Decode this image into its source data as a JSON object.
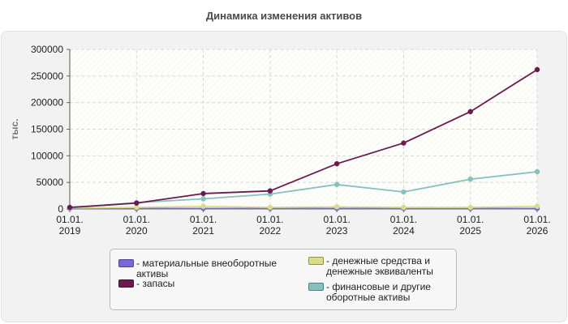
{
  "chart_data": {
    "type": "line",
    "title": "Динамика изменения активов",
    "ylabel": "тыс.",
    "xlabel": "",
    "x": [
      "01.01.\n2019",
      "01.01.\n2020",
      "01.01.\n2021",
      "01.01.\n2022",
      "01.01.\n2023",
      "01.01.\n2024",
      "01.01.\n2025",
      "01.01.\n2026"
    ],
    "ylim": [
      0,
      300000
    ],
    "yticks": [
      0,
      50000,
      100000,
      150000,
      200000,
      250000,
      300000
    ],
    "grid": true,
    "legend_position": "bottom",
    "series": [
      {
        "name": "- материальные внеоборотные активы",
        "color": "#7b68d8",
        "values": [
          1000,
          1000,
          1000,
          1000,
          1000,
          1000,
          1000,
          1000
        ]
      },
      {
        "name": "- запасы",
        "color": "#6b1a4e",
        "values": [
          3000,
          11000,
          29000,
          34000,
          85000,
          124000,
          183000,
          262000
        ]
      },
      {
        "name": "- денежные средства и денежные эквиваленты",
        "color": "#dcdc88",
        "values": [
          2000,
          3000,
          5000,
          3000,
          4000,
          3000,
          3000,
          5000
        ]
      },
      {
        "name": "- финансовые и другие оборотные активы",
        "color": "#86c0c0",
        "values": [
          2000,
          12000,
          19000,
          28000,
          46000,
          32000,
          56000,
          70000
        ]
      }
    ]
  }
}
